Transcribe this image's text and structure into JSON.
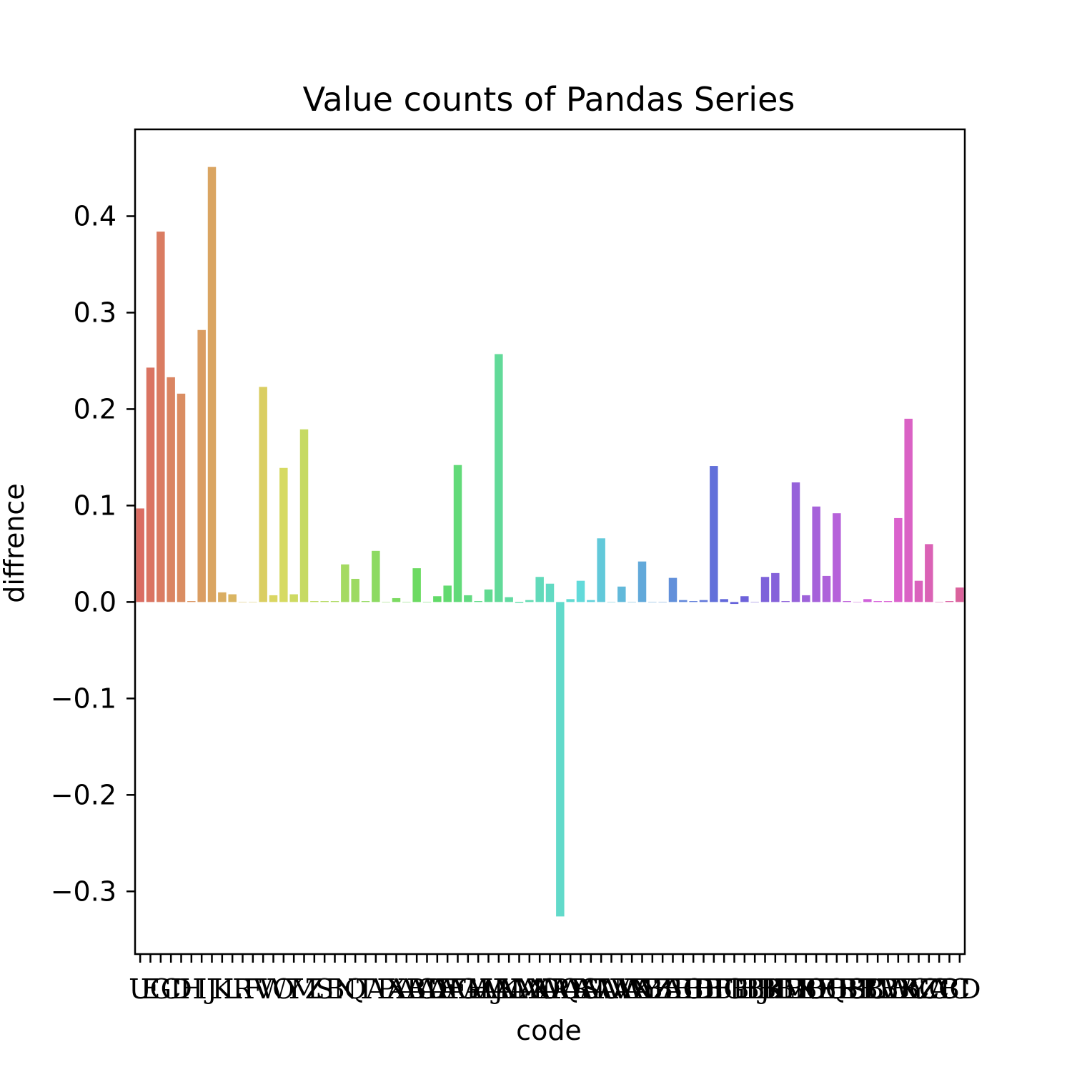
{
  "chart_data": {
    "type": "bar",
    "title": "Value counts of Pandas Series",
    "xlabel": "code",
    "ylabel": "diffrence",
    "ylim": [
      -0.365,
      0.49
    ],
    "yticks": [
      -0.3,
      -0.2,
      -0.1,
      0.0,
      0.1,
      0.2,
      0.3,
      0.4
    ],
    "ytick_labels": [
      "−0.3",
      "−0.2",
      "−0.1",
      "0.0",
      "0.1",
      "0.2",
      "0.3",
      "0.4"
    ],
    "categories": [
      "U",
      "E",
      "G",
      "C",
      "D",
      "H",
      "I",
      "J",
      "K",
      "L",
      "R",
      "F",
      "V",
      "W",
      "O",
      "Y",
      "M",
      "Z",
      "S",
      "B",
      "N",
      "Q",
      "T",
      "A",
      "P",
      "X",
      "AB",
      "AC",
      "AD",
      "AE",
      "AF",
      "AG",
      "AH",
      "AI",
      "AJ",
      "AK",
      "AL",
      "AM",
      "AN",
      "AO",
      "AP",
      "AQ",
      "AR",
      "AS",
      "AT",
      "AU",
      "AV",
      "AW",
      "AX",
      "AY",
      "AZ",
      "BA",
      "BB",
      "BC",
      "BD",
      "BE",
      "BF",
      "BG",
      "BH",
      "BI",
      "BJ",
      "BK",
      "BL",
      "BM",
      "BN",
      "BO",
      "BP",
      "BQ",
      "BR",
      "BS",
      "BT",
      "BU",
      "BV",
      "BW",
      "BX",
      "BY",
      "BZ",
      "CA",
      "CB",
      "CC",
      "CD"
    ],
    "values": [
      0.097,
      0.243,
      0.384,
      0.233,
      0.216,
      0.001,
      0.282,
      0.451,
      0.01,
      0.008,
      0.0,
      0.0,
      0.223,
      0.007,
      0.139,
      0.008,
      0.179,
      0.001,
      0.001,
      0.001,
      0.039,
      0.024,
      0.001,
      0.053,
      0.0,
      0.004,
      0.0,
      0.035,
      0.0,
      0.006,
      0.017,
      0.142,
      0.007,
      0.001,
      0.013,
      0.257,
      0.005,
      -0.001,
      0.002,
      0.026,
      0.019,
      -0.326,
      0.003,
      0.022,
      0.002,
      0.066,
      0.0,
      0.016,
      0.0,
      0.042,
      0.0,
      0.0,
      0.025,
      0.002,
      0.001,
      0.002,
      0.141,
      0.003,
      -0.002,
      0.006,
      0.0,
      0.026,
      0.03,
      0.001,
      0.124,
      0.007,
      0.099,
      0.027,
      0.092,
      0.001,
      0.0,
      0.003,
      0.001,
      0.001,
      0.087,
      0.19,
      0.022,
      0.06,
      0.0,
      0.001,
      0.015
    ],
    "grid": false,
    "legend": "none",
    "palette": "husl"
  }
}
